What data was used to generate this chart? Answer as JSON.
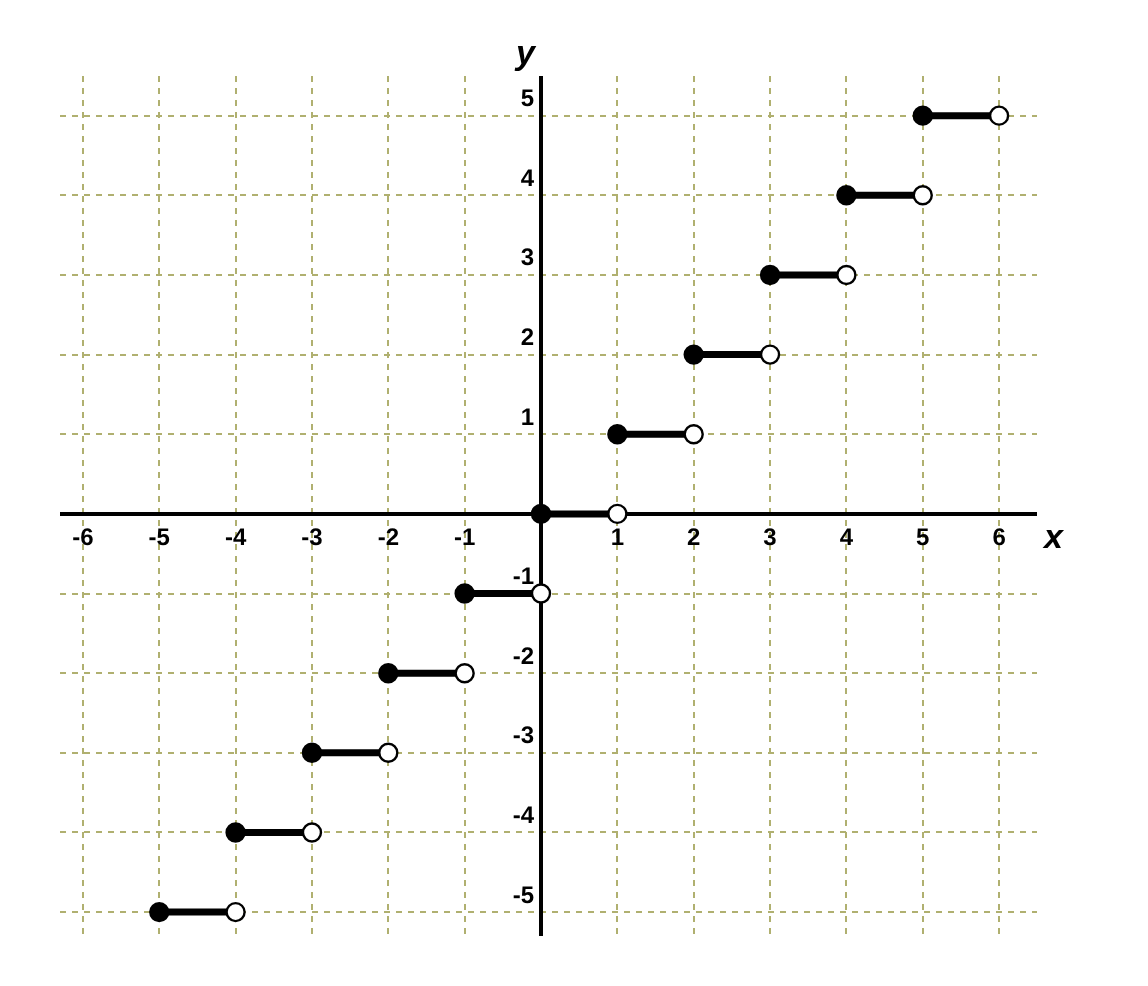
{
  "chart_data": {
    "type": "line",
    "xlabel": "x",
    "ylabel": "y",
    "xlim": [
      -6.3,
      6.5
    ],
    "ylim": [
      -5.3,
      5.5
    ],
    "xticks": [
      -6,
      -5,
      -4,
      -3,
      -2,
      -1,
      1,
      2,
      3,
      4,
      5,
      6
    ],
    "yticks": [
      -5,
      -4,
      -3,
      -2,
      -1,
      1,
      2,
      3,
      4,
      5
    ],
    "grid": true,
    "legend": false,
    "series": [
      {
        "color": "#000000",
        "marker": "none",
        "x": [
          -5,
          -4
        ],
        "values": [
          -5,
          -5
        ]
      },
      {
        "color": "#000000",
        "marker": "none",
        "x": [
          -4,
          -3
        ],
        "values": [
          -4,
          -4
        ]
      },
      {
        "color": "#000000",
        "marker": "none",
        "x": [
          -3,
          -2
        ],
        "values": [
          -3,
          -3
        ]
      },
      {
        "color": "#000000",
        "marker": "none",
        "x": [
          -2,
          -1
        ],
        "values": [
          -2,
          -2
        ]
      },
      {
        "color": "#000000",
        "marker": "none",
        "x": [
          -1,
          0
        ],
        "values": [
          -1,
          -1
        ]
      },
      {
        "color": "#000000",
        "marker": "none",
        "x": [
          0,
          1
        ],
        "values": [
          0,
          0
        ]
      },
      {
        "color": "#000000",
        "marker": "none",
        "x": [
          1,
          2
        ],
        "values": [
          1,
          1
        ]
      },
      {
        "color": "#000000",
        "marker": "none",
        "x": [
          2,
          3
        ],
        "values": [
          2,
          2
        ]
      },
      {
        "color": "#000000",
        "marker": "none",
        "x": [
          3,
          4
        ],
        "values": [
          3,
          3
        ]
      },
      {
        "color": "#000000",
        "marker": "none",
        "x": [
          4,
          5
        ],
        "values": [
          4,
          4
        ]
      },
      {
        "color": "#000000",
        "marker": "none",
        "x": [
          5,
          6
        ],
        "values": [
          5,
          5
        ]
      },
      {
        "type": "scatter",
        "color": "#000000",
        "marker": "circle",
        "x": [
          -5,
          -4,
          -3,
          -2,
          -1,
          0,
          1,
          2,
          3,
          4,
          5
        ],
        "values": [
          -5,
          -4,
          -3,
          -2,
          -1,
          0,
          1,
          2,
          3,
          4,
          5
        ]
      },
      {
        "type": "scatter",
        "color": "#ffffff",
        "marker": "circle",
        "x": [
          -4,
          -3,
          -2,
          -1,
          0,
          1,
          2,
          3,
          4,
          5,
          6
        ],
        "values": [
          -5,
          -4,
          -3,
          -2,
          -1,
          0,
          1,
          2,
          3,
          4,
          5
        ]
      }
    ]
  }
}
